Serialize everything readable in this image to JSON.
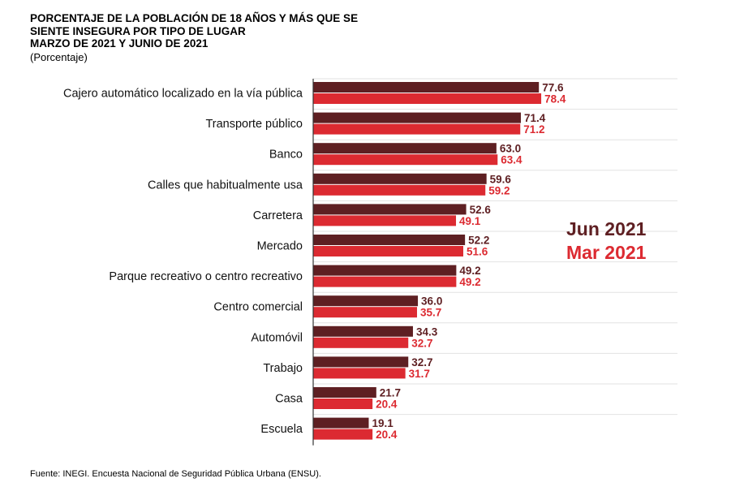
{
  "title_lines": [
    "PORCENTAJE DE LA POBLACIÓN DE 18 AÑOS Y MÁS QUE SE",
    "SIENTE INSEGURA POR TIPO DE LUGAR",
    "MARZO DE 2021 Y JUNIO DE 2021"
  ],
  "subtitle": "(Porcentaje)",
  "source": "Fuente: INEGI. Encuesta Nacional de Seguridad Pública Urbana (ENSU).",
  "colors": {
    "jun": "#5e1f22",
    "mar": "#dc2a31"
  },
  "chart_data": {
    "type": "bar",
    "orientation": "horizontal",
    "categories": [
      "Cajero automático localizado en la vía pública",
      "Transporte público",
      "Banco",
      "Calles que habitualmente usa",
      "Carretera",
      "Mercado",
      "Parque recreativo o centro recreativo",
      "Centro comercial",
      "Automóvil",
      "Trabajo",
      "Casa",
      "Escuela"
    ],
    "series": [
      {
        "name": "Jun 2021",
        "color": "#5e1f22",
        "values": [
          77.6,
          71.4,
          63.0,
          59.6,
          52.6,
          52.2,
          49.2,
          36.0,
          34.3,
          32.7,
          21.7,
          19.1
        ],
        "labels": [
          "77.6",
          "71.4",
          "63.0",
          "59.6",
          "52.6",
          "52.2",
          "49.2",
          "36.0",
          "34.3",
          "32.7",
          "21.7",
          "19.1"
        ]
      },
      {
        "name": "Mar 2021",
        "color": "#dc2a31",
        "values": [
          78.4,
          71.2,
          63.4,
          59.2,
          49.1,
          51.6,
          49.2,
          35.7,
          32.7,
          31.7,
          20.4,
          20.4
        ],
        "labels": [
          "78.4",
          "71.2",
          "63.4",
          "59.2",
          "49.1",
          "51.6",
          "49.2",
          "35.7",
          "32.7",
          "31.7",
          "20.4",
          "20.4"
        ]
      }
    ],
    "xlim": [
      0,
      100
    ],
    "grid": true,
    "legend_position": "right"
  }
}
